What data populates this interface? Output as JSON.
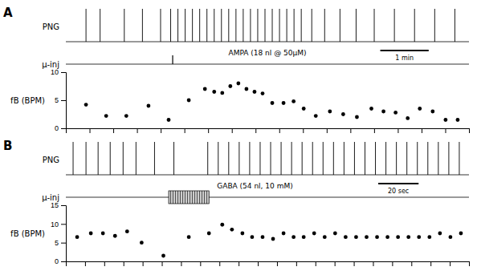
{
  "chart_data": [
    {
      "type": "scatter",
      "title": "A",
      "trace": {
        "label": "PNG",
        "spike_times": [
          0.5,
          0.85,
          1.45,
          1.9,
          2.35,
          2.6,
          2.78,
          2.96,
          3.14,
          3.32,
          3.5,
          3.68,
          3.86,
          4.04,
          4.22,
          4.4,
          4.58,
          4.76,
          4.94,
          5.12,
          5.3,
          5.48,
          5.66,
          5.84,
          6.1,
          6.42,
          6.8,
          7.2,
          7.65,
          8.15,
          8.65,
          9.15,
          9.65
        ]
      },
      "injection": {
        "label": "μ-inj",
        "text": "AMPA (18 nl @ 50μM)",
        "scale_bar": "1 min",
        "marker": "tick"
      },
      "ylabel": "fB (BPM)",
      "x": [
        0.5,
        1.0,
        1.5,
        2.05,
        2.55,
        3.05,
        3.45,
        3.68,
        3.88,
        4.08,
        4.28,
        4.48,
        4.68,
        4.88,
        5.12,
        5.4,
        5.65,
        5.9,
        6.2,
        6.55,
        6.88,
        7.22,
        7.58,
        7.88,
        8.18,
        8.48,
        8.78,
        9.1,
        9.42,
        9.72
      ],
      "values": [
        4.2,
        2.2,
        2.2,
        4.0,
        1.5,
        5.0,
        7.0,
        6.5,
        6.3,
        7.5,
        8.0,
        7.0,
        6.5,
        6.2,
        4.5,
        4.5,
        4.8,
        3.5,
        2.2,
        3.0,
        2.5,
        2.0,
        3.5,
        3.0,
        2.8,
        1.8,
        3.5,
        3.0,
        1.5,
        1.5
      ],
      "color": "#000000",
      "xlim": [
        0,
        10
      ],
      "xticks": [
        0,
        0.5882352941176471,
        1.1764705882352942,
        1.7647058823529411,
        2.3529411764705883,
        2.9411764705882355,
        3.5294117647058822,
        4.117647058823529,
        4.705882352941177,
        5.294117647058823,
        5.882352941176471,
        6.470588235294118,
        7.0588235294117645,
        7.647058823529412,
        8.235294117647058,
        8.823529411764707,
        9.411764705882353,
        10
      ],
      "ylim": [
        0,
        10
      ],
      "yticks": [
        0,
        5,
        10
      ],
      "tick_labels": "y"
    },
    {
      "type": "scatter",
      "title": "B",
      "trace": {
        "label": "PNG",
        "spike_times": [
          0.18,
          0.5,
          0.8,
          1.1,
          1.42,
          1.74,
          2.2,
          2.68,
          3.52,
          3.78,
          4.04,
          4.3,
          4.56,
          4.82,
          5.08,
          5.34,
          5.6,
          5.86,
          6.12,
          6.38,
          6.64,
          6.9,
          7.16,
          7.42,
          7.68,
          7.94,
          8.2,
          8.46,
          8.72,
          8.98,
          9.24,
          9.5,
          9.76
        ]
      },
      "injection": {
        "label": "μ-inj",
        "text": "GABA (54 nl, 10 mM)",
        "scale_bar": "20 sec",
        "marker": "rect"
      },
      "ylabel": "fB (BPM)",
      "x": [
        0.28,
        0.62,
        0.92,
        1.22,
        1.52,
        1.88,
        2.42,
        3.05,
        3.55,
        3.88,
        4.12,
        4.38,
        4.62,
        4.88,
        5.14,
        5.4,
        5.65,
        5.9,
        6.16,
        6.42,
        6.68,
        6.94,
        7.2,
        7.46,
        7.72,
        7.98,
        8.24,
        8.5,
        8.76,
        9.02,
        9.28,
        9.54,
        9.8
      ],
      "values": [
        6.5,
        7.5,
        7.5,
        6.8,
        8.0,
        5.0,
        1.5,
        6.5,
        7.5,
        9.8,
        8.5,
        7.5,
        6.5,
        6.5,
        6.0,
        7.5,
        6.5,
        6.5,
        7.5,
        6.5,
        7.5,
        6.5,
        6.5,
        6.5,
        6.5,
        6.5,
        6.5,
        6.5,
        6.5,
        6.5,
        7.5,
        6.5,
        7.5
      ],
      "color": "#000000",
      "xlim": [
        0,
        10
      ],
      "xticks": [
        0,
        0.47619047619047616,
        0.9523809523809523,
        1.4285714285714286,
        1.9047619047619047,
        2.380952380952381,
        2.857142857142857,
        3.333333333333333,
        3.8095238095238093,
        4.285714285714286,
        4.761904761904762,
        5.238095238095238,
        5.714285714285714,
        6.19047619047619,
        6.666666666666666,
        7.142857142857142,
        7.619047619047619,
        8.095238095238095,
        8.571428571428571,
        9.047619047619047,
        9.523809523809524,
        10
      ],
      "ylim": [
        0,
        15
      ],
      "yticks": [
        0,
        5,
        10,
        15
      ],
      "tick_labels": "y"
    }
  ]
}
